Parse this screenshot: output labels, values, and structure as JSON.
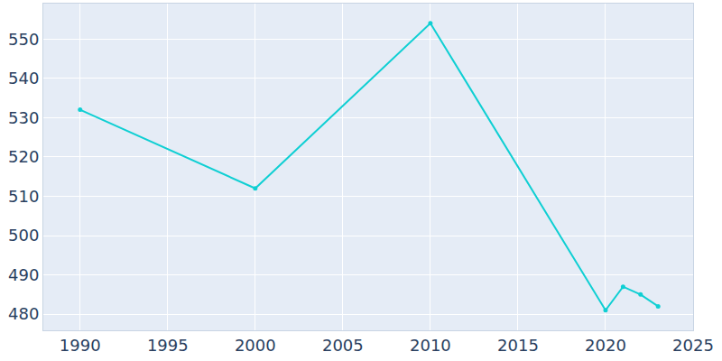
{
  "chart_data": {
    "type": "line",
    "x": [
      1990,
      2000,
      2010,
      2020,
      2021,
      2022,
      2023
    ],
    "values": [
      532,
      512,
      554,
      481,
      487,
      485,
      482
    ],
    "color": "#0fcfd3",
    "marker": "circle",
    "xlim": [
      1987.9,
      2025
    ],
    "xticks": [
      1990,
      1995,
      2000,
      2005,
      2010,
      2015,
      2020,
      2025
    ],
    "ylim": [
      475.9,
      559
    ],
    "yticks": [
      480,
      490,
      500,
      510,
      520,
      530,
      540,
      550
    ],
    "grid": true
  }
}
